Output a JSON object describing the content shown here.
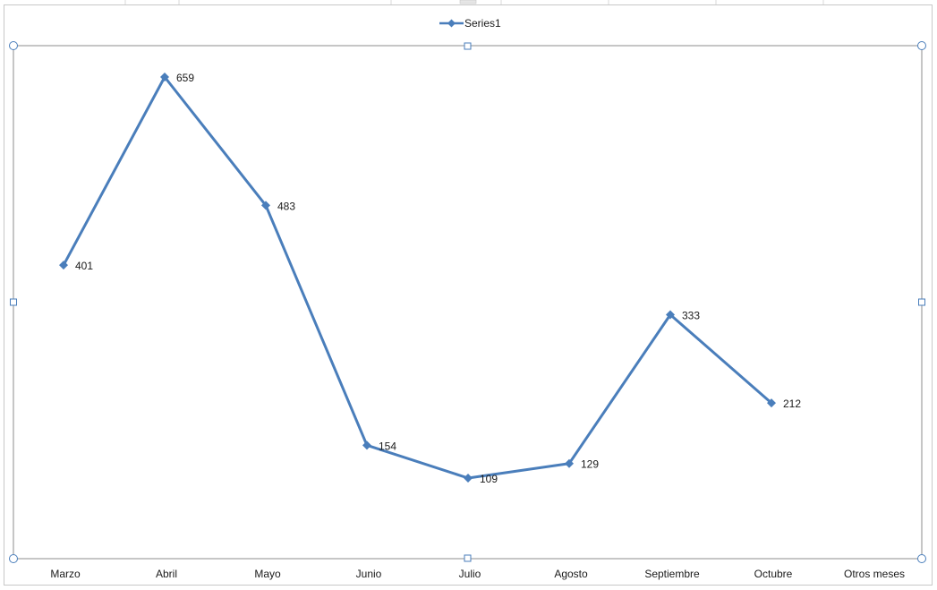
{
  "chart_data": {
    "type": "line",
    "categories": [
      "Marzo",
      "Abril",
      "Mayo",
      "Junio",
      "Julio",
      "Agosto",
      "Septiembre",
      "Octubre",
      "Otros meses"
    ],
    "series": [
      {
        "name": "Series1",
        "values": [
          401,
          659,
          483,
          154,
          109,
          129,
          333,
          212,
          null
        ]
      }
    ],
    "data_labels": [
      "401",
      "659",
      "483",
      "154",
      "109",
      "129",
      "333",
      "212"
    ],
    "legend": {
      "position": "top",
      "entries": [
        "Series1"
      ]
    },
    "grid": false,
    "marker": "diamond",
    "ylim": [
      0,
      700
    ],
    "xlabel": "",
    "ylabel": "",
    "colors": {
      "series": "#4a7ebb",
      "plot_border": "#8c8c8c",
      "handle": "#4a7ebb",
      "sheet_grid": "#d9d9d9"
    }
  }
}
